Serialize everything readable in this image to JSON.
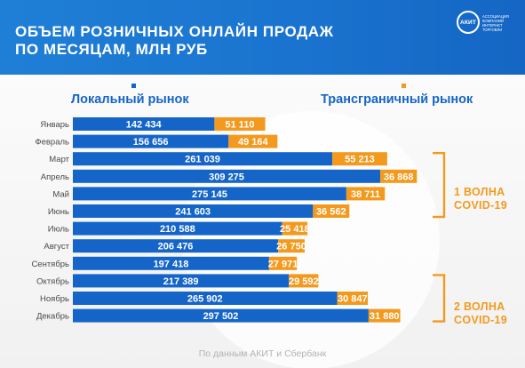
{
  "header": {
    "title": "ОБЪЕМ РОЗНИЧНЫХ ОНЛАЙН ПРОДАЖ\nПО  МЕСЯЦАМ, МЛН РУБ",
    "logo_mark": "АКИТ",
    "logo_caption": "Ассоциация компаний интернет торговли"
  },
  "annotations": {
    "wave1": "1 ВОЛНА\nCOVID-19",
    "wave2": "2 ВОЛНА\nCOVID-19"
  },
  "source": "По данным АКИТ и Сбербанк",
  "colors": {
    "local": "#1565c8",
    "cross_border": "#f39a1e",
    "header": "#1a74cf"
  },
  "chart_data": {
    "type": "bar",
    "orientation": "horizontal",
    "stacked": true,
    "title": "ОБЪЕМ РОЗНИЧНЫХ ОНЛАЙН ПРОДАЖ ПО  МЕСЯЦАМ, МЛН РУБ",
    "categories": [
      "Январь",
      "Февраль",
      "Март",
      "Апрель",
      "Май",
      "Июнь",
      "Июль",
      "Август",
      "Сентябрь",
      "Октябрь",
      "Ноябрь",
      "Декабрь"
    ],
    "series": [
      {
        "name": "Локальный рынок",
        "values": [
          142434,
          156656,
          261039,
          309275,
          275145,
          241603,
          210588,
          206476,
          197418,
          217389,
          265902,
          297502
        ],
        "labels": [
          "142 434",
          "156 656",
          "261 039",
          "309 275",
          "275 145",
          "241 603",
          "210 588",
          "206 476",
          "197 418",
          "217 389",
          "265 902",
          "297 502"
        ]
      },
      {
        "name": "Трансграничный рынок",
        "values": [
          51110,
          49164,
          55213,
          36868,
          38711,
          36562,
          25418,
          26750,
          27971,
          29592,
          30847,
          31880
        ],
        "labels": [
          "51 110",
          "49 164",
          "55 213",
          "36 868",
          "38 711",
          "36 562",
          "25 418",
          "26 750",
          "27 971",
          "29 592",
          "30 847",
          "31 880"
        ]
      }
    ],
    "legend": "top",
    "grid": false
  }
}
